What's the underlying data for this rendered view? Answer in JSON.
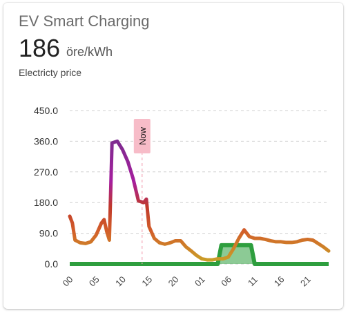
{
  "card": {
    "title": "EV Smart Charging",
    "value": "186",
    "unit": "öre/kWh",
    "subtitle": "Electricty price",
    "now_label": "Now"
  },
  "colors": {
    "now_line": "#f4a7b9",
    "charging": "#2e9e3e",
    "price_low": "#d4a017",
    "price_high": "#8e24aa"
  },
  "chart_data": {
    "type": "line",
    "yticks": [
      "450.0",
      "360.0",
      "270.0",
      "180.0",
      "90.0",
      "0.0"
    ],
    "ylim": [
      0,
      450
    ],
    "xticks": [
      "00",
      "05",
      "10",
      "15",
      "20",
      "01",
      "06",
      "11",
      "16",
      "21"
    ],
    "series": [
      {
        "values": [
          [
            0,
            140
          ],
          [
            0.5,
            120
          ],
          [
            1,
            70
          ],
          [
            2,
            62
          ],
          [
            3,
            60
          ],
          [
            4,
            65
          ],
          [
            5,
            85
          ],
          [
            6,
            120
          ],
          [
            6.5,
            130
          ],
          [
            7,
            95
          ],
          [
            7.5,
            70
          ],
          [
            8,
            355
          ],
          [
            9,
            360
          ],
          [
            10,
            335
          ],
          [
            11,
            300
          ],
          [
            12,
            250
          ],
          [
            13,
            185
          ],
          [
            14,
            180
          ],
          [
            14.5,
            190
          ],
          [
            15,
            110
          ],
          [
            16,
            75
          ],
          [
            17,
            62
          ],
          [
            18,
            58
          ],
          [
            19,
            62
          ],
          [
            20,
            68
          ],
          [
            21,
            68
          ],
          [
            22,
            50
          ],
          [
            23,
            38
          ],
          [
            24,
            25
          ],
          [
            25,
            15
          ],
          [
            26,
            12
          ],
          [
            27,
            12
          ],
          [
            28,
            15
          ],
          [
            29,
            15
          ],
          [
            30,
            20
          ],
          [
            31,
            45
          ],
          [
            32,
            75
          ],
          [
            33,
            100
          ],
          [
            34,
            80
          ],
          [
            35,
            75
          ],
          [
            36,
            75
          ],
          [
            37,
            72
          ],
          [
            38,
            68
          ],
          [
            39,
            65
          ],
          [
            40,
            65
          ],
          [
            41,
            63
          ],
          [
            42,
            63
          ],
          [
            43,
            65
          ],
          [
            44,
            70
          ],
          [
            45,
            72
          ],
          [
            46,
            70
          ],
          [
            47,
            60
          ],
          [
            48,
            50
          ],
          [
            49,
            38
          ]
        ]
      }
    ],
    "charging": [
      [
        0,
        0
      ],
      [
        28,
        0
      ],
      [
        28.7,
        55
      ],
      [
        34.3,
        55
      ],
      [
        35,
        0
      ],
      [
        49,
        0
      ]
    ],
    "now_x": 15
  }
}
